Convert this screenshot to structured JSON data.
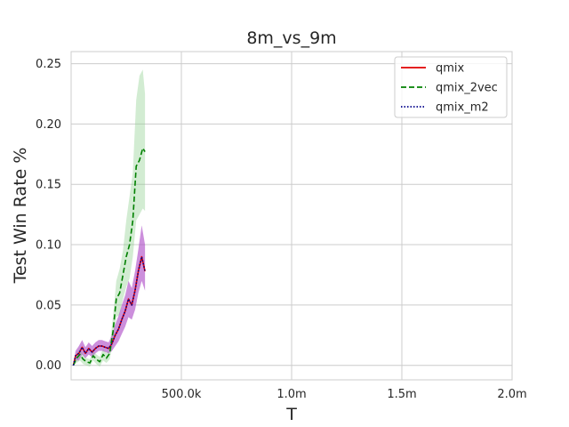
{
  "chart_data": {
    "type": "line",
    "title": "8m_vs_9m",
    "xlabel": "T",
    "ylabel": "Test Win Rate %",
    "xlim": [
      0,
      2000000
    ],
    "ylim": [
      -0.012,
      0.26
    ],
    "xticks": [
      {
        "value": 500000,
        "label": "500.0k"
      },
      {
        "value": 1000000,
        "label": "1.0m"
      },
      {
        "value": 1500000,
        "label": "1.5m"
      },
      {
        "value": 2000000,
        "label": "2.0m"
      }
    ],
    "yticks": [
      {
        "value": 0.0,
        "label": "0.00"
      },
      {
        "value": 0.05,
        "label": "0.05"
      },
      {
        "value": 0.1,
        "label": "0.10"
      },
      {
        "value": 0.15,
        "label": "0.15"
      },
      {
        "value": 0.2,
        "label": "0.20"
      },
      {
        "value": 0.25,
        "label": "0.25"
      }
    ],
    "grid": true,
    "legend_position": "top-right",
    "series": [
      {
        "name": "qmix",
        "color": "#e00000",
        "style": "solid",
        "band_color": "#b050c8",
        "x": [
          10000,
          20000,
          35000,
          50000,
          65000,
          80000,
          95000,
          110000,
          125000,
          140000,
          155000,
          170000,
          185000,
          200000,
          215000,
          230000,
          245000,
          260000,
          275000,
          290000,
          305000,
          320000,
          335000
        ],
        "y": [
          0.0,
          0.008,
          0.01,
          0.015,
          0.01,
          0.014,
          0.011,
          0.014,
          0.016,
          0.016,
          0.015,
          0.014,
          0.018,
          0.025,
          0.03,
          0.038,
          0.045,
          0.055,
          0.05,
          0.062,
          0.078,
          0.09,
          0.078
        ],
        "lower": [
          0.0,
          0.004,
          0.004,
          0.009,
          0.006,
          0.009,
          0.007,
          0.01,
          0.012,
          0.012,
          0.011,
          0.01,
          0.012,
          0.016,
          0.02,
          0.026,
          0.032,
          0.04,
          0.038,
          0.046,
          0.06,
          0.07,
          0.062
        ],
        "upper": [
          0.0,
          0.012,
          0.016,
          0.021,
          0.015,
          0.019,
          0.016,
          0.019,
          0.021,
          0.021,
          0.02,
          0.019,
          0.025,
          0.034,
          0.041,
          0.05,
          0.058,
          0.07,
          0.064,
          0.078,
          0.096,
          0.116,
          0.1
        ]
      },
      {
        "name": "qmix_2vec",
        "color": "#008000",
        "style": "dashed",
        "band_color": "#8fcf8f",
        "x": [
          10000,
          25000,
          40000,
          55000,
          70000,
          85000,
          100000,
          115000,
          130000,
          145000,
          160000,
          175000,
          190000,
          205000,
          220000,
          235000,
          250000,
          265000,
          280000,
          295000,
          310000,
          325000,
          335000
        ],
        "y": [
          0.0,
          0.006,
          0.009,
          0.005,
          0.003,
          0.002,
          0.008,
          0.005,
          0.003,
          0.009,
          0.006,
          0.01,
          0.028,
          0.055,
          0.06,
          0.075,
          0.09,
          0.1,
          0.12,
          0.165,
          0.17,
          0.18,
          0.177
        ],
        "lower": [
          0.0,
          0.002,
          0.004,
          0.001,
          0.0,
          -0.001,
          0.004,
          0.001,
          -0.001,
          0.004,
          0.002,
          0.005,
          0.018,
          0.04,
          0.042,
          0.055,
          0.065,
          0.072,
          0.09,
          0.12,
          0.125,
          0.13,
          0.128
        ],
        "upper": [
          0.0,
          0.01,
          0.014,
          0.009,
          0.006,
          0.005,
          0.012,
          0.009,
          0.007,
          0.014,
          0.01,
          0.016,
          0.04,
          0.07,
          0.08,
          0.095,
          0.12,
          0.14,
          0.16,
          0.22,
          0.24,
          0.245,
          0.225
        ]
      },
      {
        "name": "qmix_m2",
        "color": "#00008b",
        "style": "dotted",
        "band_color": "#b050c8",
        "x": [
          10000,
          20000,
          35000,
          50000,
          65000,
          80000,
          95000,
          110000,
          125000,
          140000,
          155000,
          170000,
          185000,
          200000,
          215000,
          230000,
          245000,
          260000,
          275000,
          290000,
          305000,
          320000,
          335000
        ],
        "y": [
          0.0,
          0.008,
          0.01,
          0.015,
          0.01,
          0.014,
          0.011,
          0.014,
          0.016,
          0.016,
          0.015,
          0.014,
          0.018,
          0.025,
          0.03,
          0.038,
          0.045,
          0.055,
          0.05,
          0.062,
          0.078,
          0.09,
          0.078
        ],
        "lower": [
          0.0,
          0.004,
          0.004,
          0.009,
          0.006,
          0.009,
          0.007,
          0.01,
          0.012,
          0.012,
          0.011,
          0.01,
          0.012,
          0.016,
          0.02,
          0.026,
          0.032,
          0.04,
          0.038,
          0.046,
          0.06,
          0.07,
          0.062
        ],
        "upper": [
          0.0,
          0.012,
          0.016,
          0.021,
          0.015,
          0.019,
          0.016,
          0.019,
          0.021,
          0.021,
          0.02,
          0.019,
          0.025,
          0.034,
          0.041,
          0.05,
          0.058,
          0.07,
          0.064,
          0.078,
          0.096,
          0.116,
          0.1
        ]
      }
    ]
  }
}
